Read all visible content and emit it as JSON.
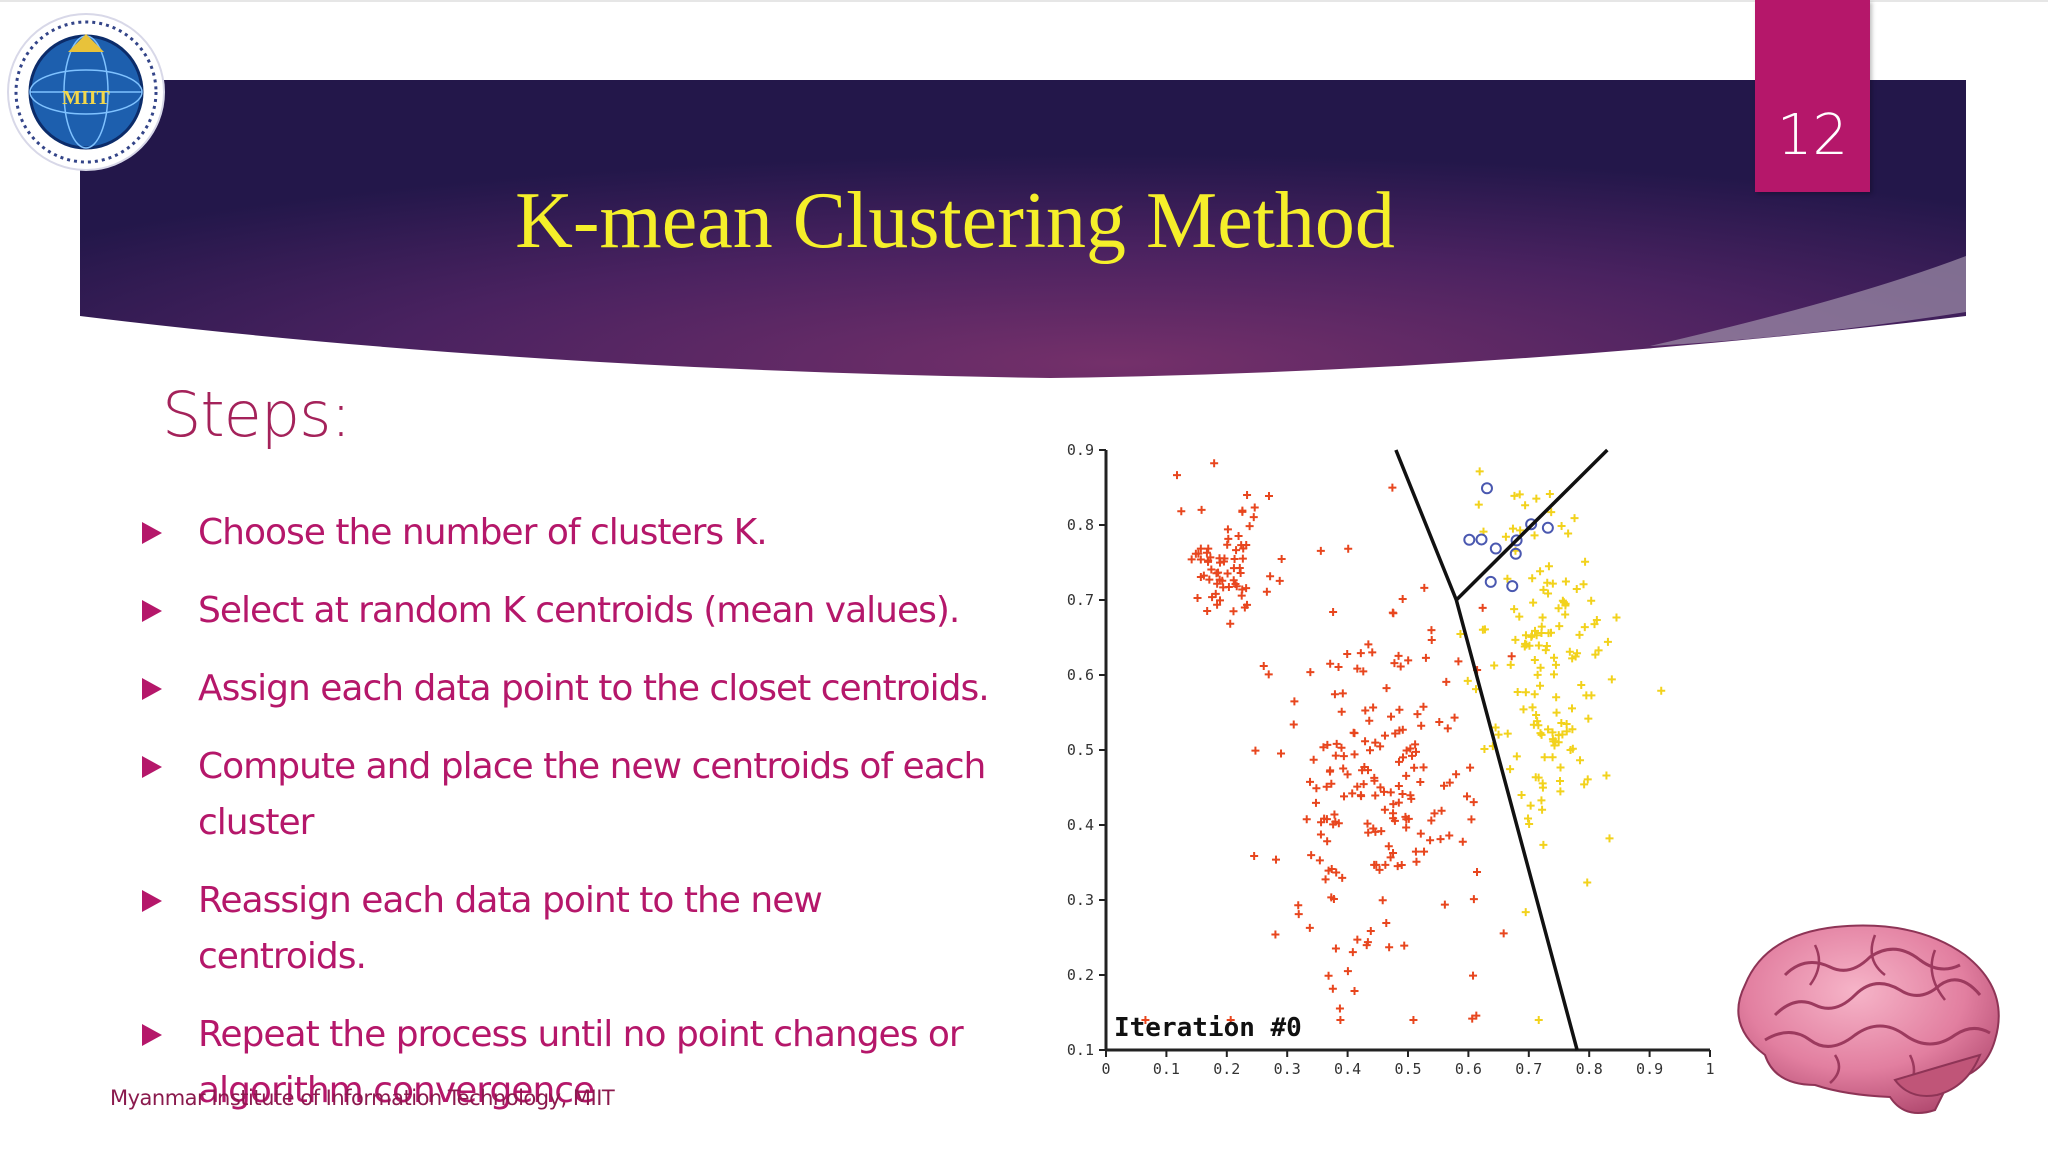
{
  "slide": {
    "number": "12",
    "title": "K-mean Clustering Method",
    "heading": "Steps:",
    "steps": [
      "Choose the number of clusters K.",
      "Select at random K centroids (mean values).",
      "Assign each data point to the closet centroids.",
      "Compute and place the new centroids of each cluster",
      "Reassign each data point to the new centroids.",
      "Repeat the process until no point changes or algorithm convergence"
    ],
    "footer": "Myanmar Institute of Information Technology, MIIT",
    "logo_text": "MIIT"
  },
  "colors": {
    "accent": "#b5176a",
    "title": "#f5ef2a",
    "banner_dark": "#2a1850",
    "banner_light": "#6a2a60",
    "cluster_red": "#e8461e",
    "cluster_yellow": "#f2d21c",
    "cluster_blue": "#4a58b0"
  },
  "chart_data": {
    "type": "scatter",
    "title": "Iteration #0",
    "xlabel": "",
    "ylabel": "",
    "xlim": [
      0,
      1
    ],
    "ylim": [
      0.1,
      0.9
    ],
    "x_ticks": [
      "0",
      "0.1",
      "0.2",
      "0.3",
      "0.4",
      "0.5",
      "0.6",
      "0.7",
      "0.8",
      "0.9",
      "1"
    ],
    "y_ticks": [
      "0.1",
      "0.2",
      "0.3",
      "0.4",
      "0.5",
      "0.6",
      "0.7",
      "0.8",
      "0.9"
    ],
    "boundaries": [
      {
        "x": [
          0.48,
          0.58,
          0.78
        ],
        "y": [
          0.9,
          0.7,
          0.1
        ]
      },
      {
        "x": [
          0.58,
          0.83
        ],
        "y": [
          0.7,
          0.9
        ]
      }
    ],
    "series": [
      {
        "marker": "plus",
        "color": "#e8461e",
        "clusters": [
          {
            "cx": 0.2,
            "cy": 0.75,
            "sx": 0.04,
            "sy": 0.04,
            "n": 70
          },
          {
            "cx": 0.45,
            "cy": 0.45,
            "sx": 0.09,
            "sy": 0.13,
            "n": 200
          }
        ]
      },
      {
        "marker": "plus",
        "color": "#f2d21c",
        "clusters": [
          {
            "cx": 0.73,
            "cy": 0.6,
            "sx": 0.06,
            "sy": 0.12,
            "n": 150
          }
        ]
      },
      {
        "marker": "circle",
        "color": "#4a58b0",
        "clusters": [
          {
            "cx": 0.67,
            "cy": 0.78,
            "sx": 0.03,
            "sy": 0.03,
            "n": 10
          }
        ]
      }
    ]
  }
}
